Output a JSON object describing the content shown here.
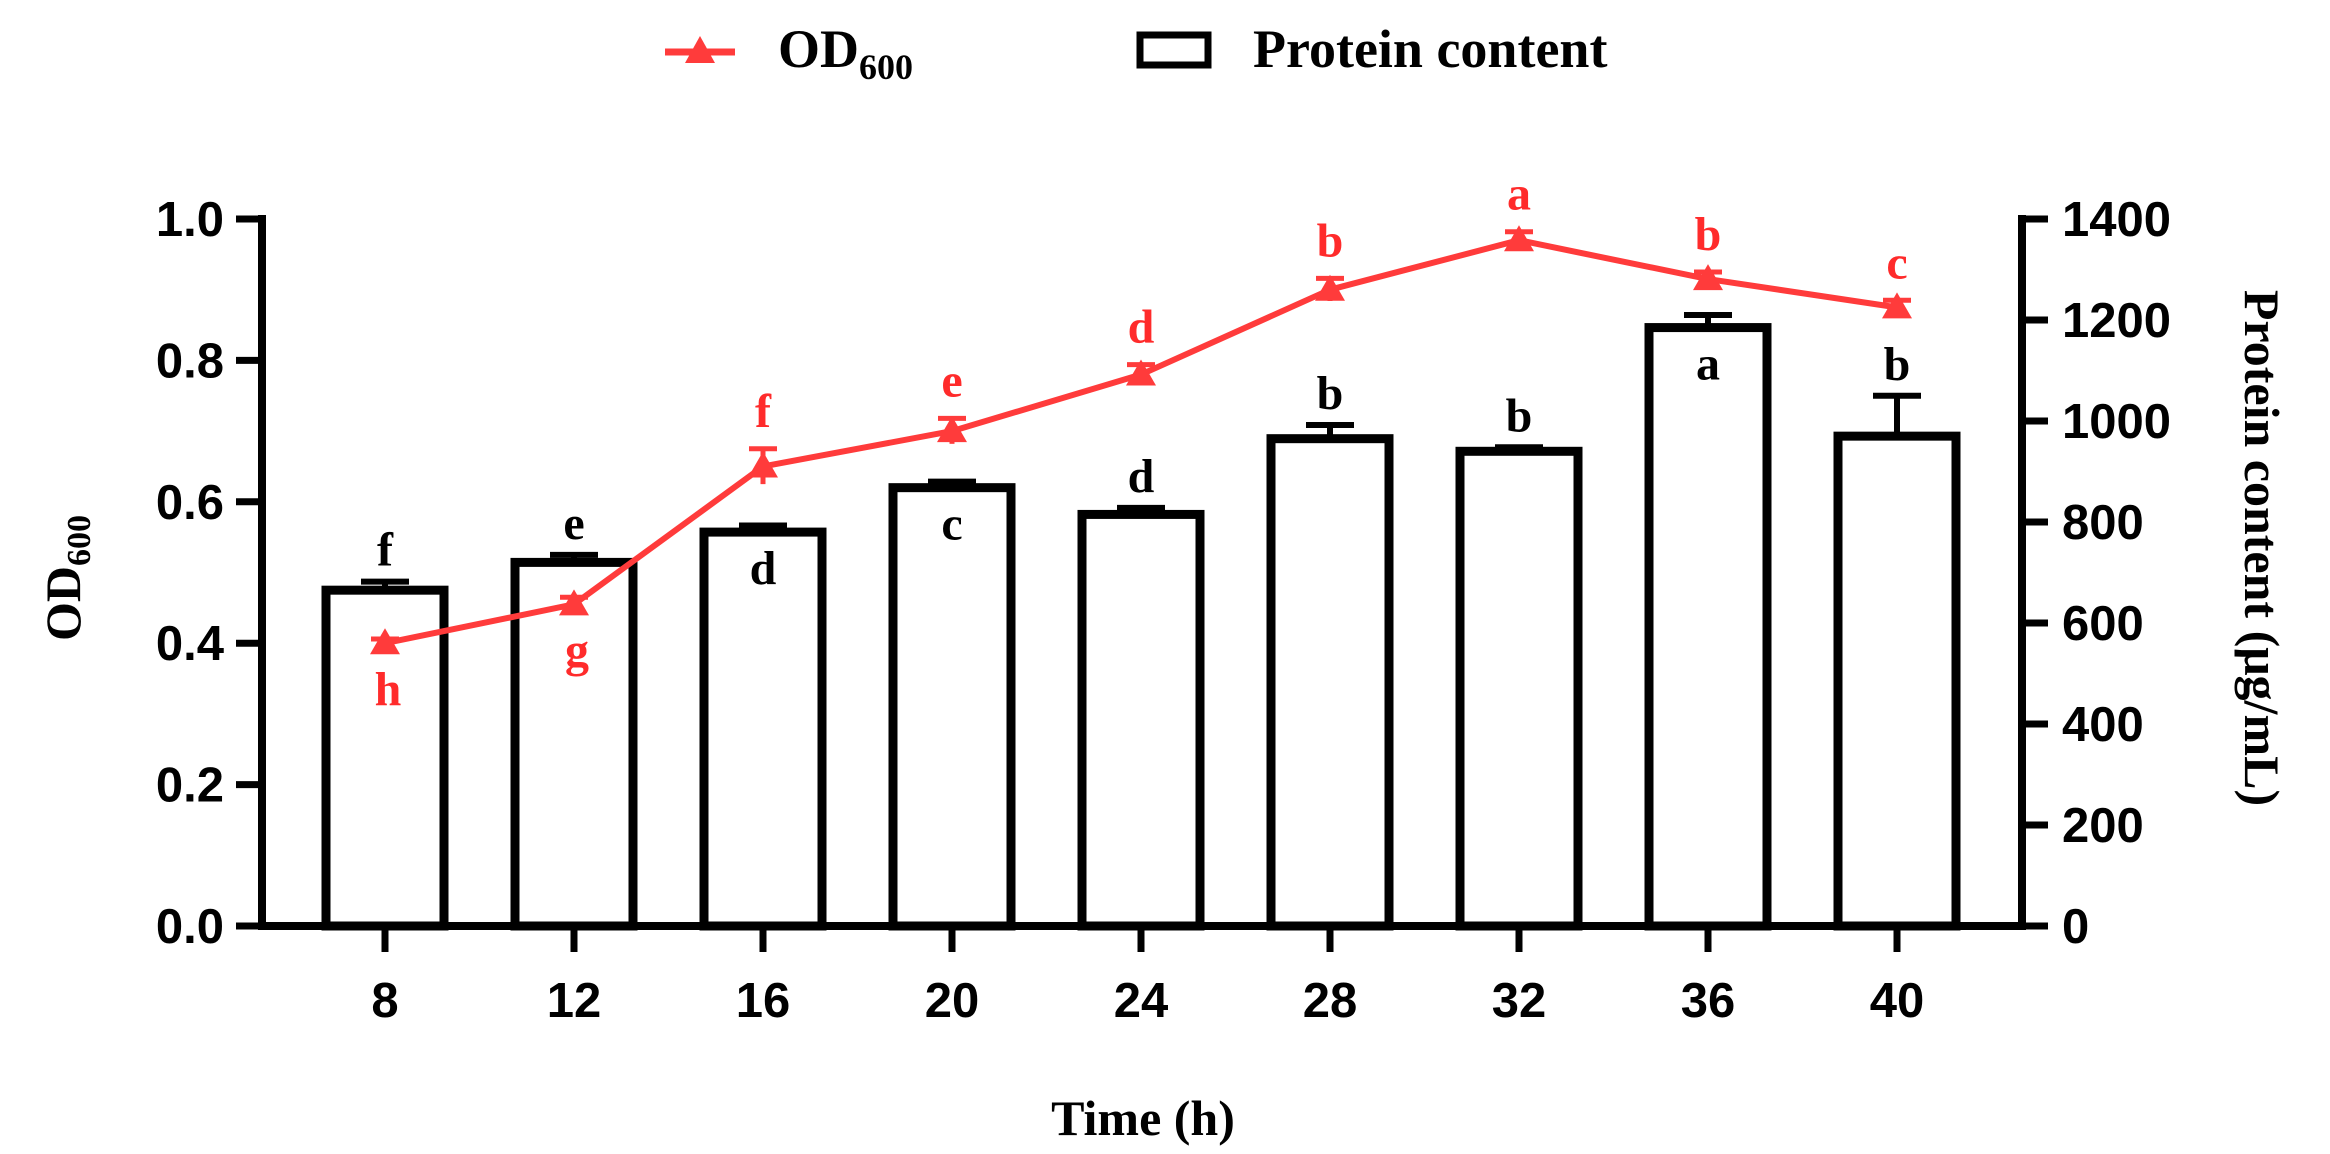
{
  "chart_data": {
    "type": "bar+line",
    "x_title": "Time (h)",
    "categories": [
      "8",
      "12",
      "16",
      "20",
      "24",
      "28",
      "32",
      "36",
      "40"
    ],
    "left_axis": {
      "title_main": "OD",
      "title_sub": "600",
      "range": [
        0,
        1.0
      ],
      "ticks": [
        0.0,
        0.2,
        0.4,
        0.6,
        0.8,
        1.0
      ],
      "tick_labels": [
        "0.0",
        "0.2",
        "0.4",
        "0.6",
        "0.8",
        "1.0"
      ]
    },
    "right_axis": {
      "title": "Protein content (μg/mL)",
      "range": [
        0,
        1400
      ],
      "ticks": [
        0,
        200,
        400,
        600,
        800,
        1000,
        1200,
        1400
      ],
      "tick_labels": [
        "0",
        "200",
        "400",
        "600",
        "800",
        "1000",
        "1200",
        "1400"
      ]
    },
    "bar_series": {
      "name": "Protein content",
      "axis": "right",
      "values": [
        665,
        720,
        780,
        868,
        815,
        965,
        940,
        1185,
        970
      ],
      "errors": [
        17,
        15,
        13,
        12,
        13,
        27,
        8,
        25,
        80
      ],
      "letters": [
        "f",
        "e",
        "d",
        "c",
        "d",
        "b",
        "b",
        "a",
        "b"
      ],
      "letter_positions": [
        "above",
        "above",
        "inside",
        "inside",
        "above",
        "above",
        "above",
        "inside",
        "above"
      ],
      "color": "#000000"
    },
    "line_series": {
      "name_main": "OD",
      "name_sub": "600",
      "axis": "left",
      "values": [
        0.4,
        0.455,
        0.65,
        0.7,
        0.78,
        0.9,
        0.97,
        0.915,
        0.875
      ],
      "errors": [
        0.006,
        0.01,
        0.025,
        0.018,
        0.014,
        0.016,
        0.012,
        0.01,
        0.01
      ],
      "letters": [
        "h",
        "g",
        "f",
        "e",
        "d",
        "b",
        "a",
        "b",
        "c"
      ],
      "letter_positions": [
        "below",
        "below",
        "above",
        "above",
        "above",
        "above",
        "above",
        "above",
        "above"
      ],
      "color": "#ff3b3b"
    },
    "legend": {
      "position": "top-center",
      "line_label_main": "OD",
      "line_label_sub": "600",
      "bar_label": "Protein content"
    }
  }
}
